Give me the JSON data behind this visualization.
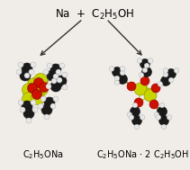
{
  "title_text": "Na  +  C$_2$H$_5$OH",
  "label_left": "C$_2$H$_5$ONa",
  "label_right": "C$_2$H$_5$ONa $\\cdot$ 2 C$_2$H$_5$OH",
  "bg_color": "#f0ede8",
  "title_fontsize": 8.5,
  "label_fontsize": 7.0,
  "arrow_color": "#333333",
  "figwidth": 2.11,
  "figheight": 1.89,
  "dpi": 100,
  "na_color": "#c8d400",
  "o_color": "#cc1100",
  "c_color": "#1a1a1a",
  "h_color": "#e8e8e8",
  "bond_color": "#aa8844"
}
